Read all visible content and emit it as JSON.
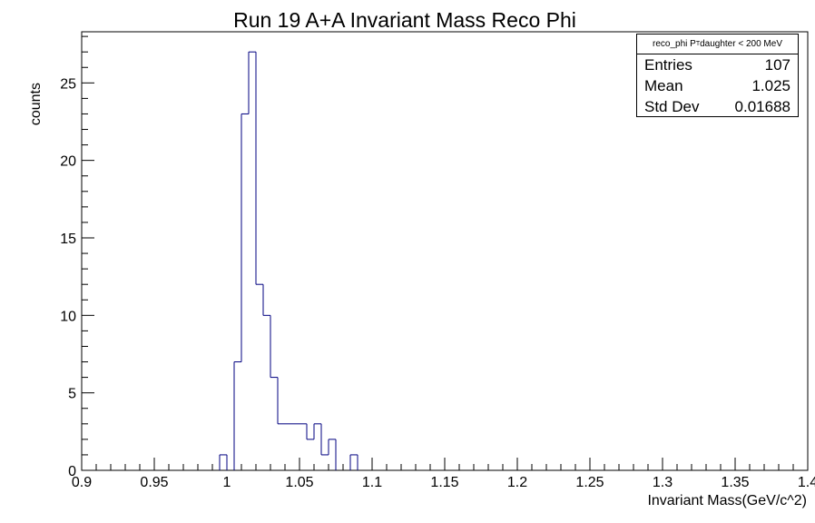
{
  "chart_data": {
    "type": "histogram",
    "title": "Run 19 A+A Invariant Mass Reco Phi",
    "xlabel": "Invariant Mass(GeV/c^2)",
    "ylabel": "counts",
    "xlim": [
      0.9,
      1.4
    ],
    "ylim": [
      0,
      28.3
    ],
    "bin_width": 0.005,
    "line_color": "#000080",
    "x_ticks": [
      "0.9",
      "0.95",
      "1",
      "1.05",
      "1.1",
      "1.15",
      "1.2",
      "1.25",
      "1.3",
      "1.35",
      "1.4"
    ],
    "x_tick_values": [
      0.9,
      0.95,
      1.0,
      1.05,
      1.1,
      1.15,
      1.2,
      1.25,
      1.3,
      1.35,
      1.4
    ],
    "y_ticks": [
      "0",
      "5",
      "10",
      "15",
      "20",
      "25"
    ],
    "y_tick_values": [
      0,
      5,
      10,
      15,
      20,
      25
    ],
    "bins": [
      {
        "x": 0.995,
        "count": 1
      },
      {
        "x": 1.005,
        "count": 7
      },
      {
        "x": 1.01,
        "count": 23
      },
      {
        "x": 1.015,
        "count": 27
      },
      {
        "x": 1.02,
        "count": 12
      },
      {
        "x": 1.025,
        "count": 10
      },
      {
        "x": 1.03,
        "count": 6
      },
      {
        "x": 1.035,
        "count": 3
      },
      {
        "x": 1.04,
        "count": 3
      },
      {
        "x": 1.045,
        "count": 3
      },
      {
        "x": 1.05,
        "count": 3
      },
      {
        "x": 1.055,
        "count": 2
      },
      {
        "x": 1.06,
        "count": 3
      },
      {
        "x": 1.065,
        "count": 1
      },
      {
        "x": 1.07,
        "count": 2
      },
      {
        "x": 1.085,
        "count": 1
      }
    ],
    "stats_box": {
      "name": "reco_phi P",
      "name_sub": "T",
      "name_suffix": " daughter < 200 MeV",
      "rows": [
        {
          "label": "Entries",
          "value": "107"
        },
        {
          "label": "Mean",
          "value": "1.025"
        },
        {
          "label": "Std Dev",
          "value": "0.01688"
        }
      ]
    }
  }
}
